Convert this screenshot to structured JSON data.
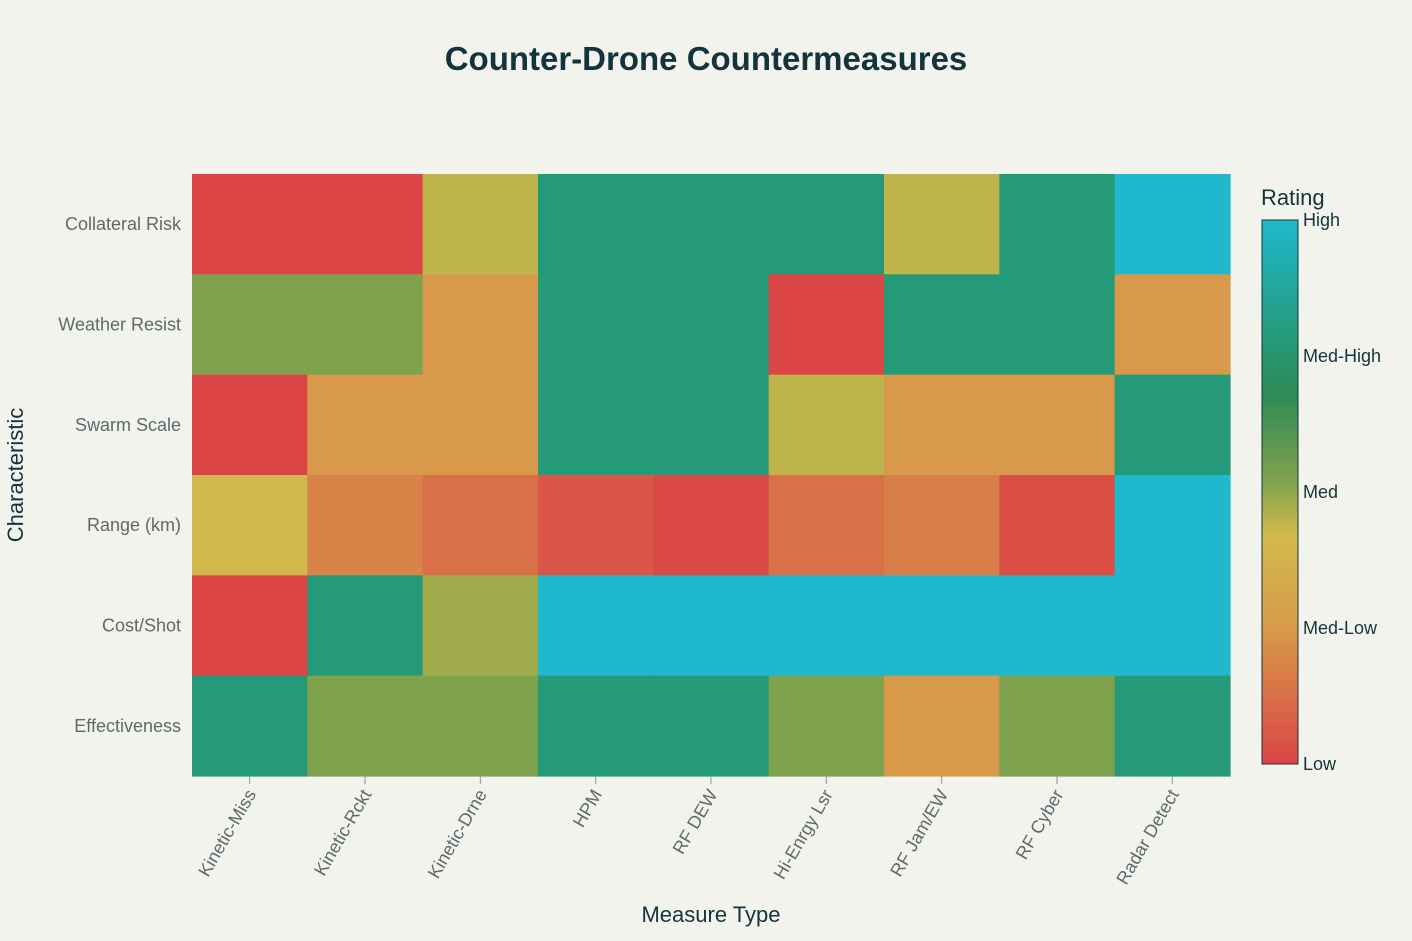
{
  "chart_data": {
    "type": "heatmap",
    "title": "Counter-Drone Countermeasures",
    "xlabel": "Measure Type",
    "ylabel": "Characteristic",
    "x_categories": [
      "Kinetic-Miss",
      "Kinetic-Rckt",
      "Kinetic-Drne",
      "HPM",
      "RF DEW",
      "Hi-Enrgy Lsr",
      "RF Jam/EW",
      "RF Cyber",
      "Radar Detect"
    ],
    "y_categories": [
      "Collateral Risk",
      "Weather Resist",
      "Swarm Scale",
      "Range (km)",
      "Cost/Shot",
      "Effectiveness"
    ],
    "values": [
      [
        0,
        0,
        1.8,
        3,
        3,
        3,
        1.8,
        3,
        4
      ],
      [
        2.2,
        2.2,
        1,
        3,
        3,
        0,
        3,
        3,
        1
      ],
      [
        0,
        1,
        1,
        3,
        3,
        1.8,
        1,
        1,
        3
      ],
      [
        1.7,
        0.6,
        0.25,
        0.1,
        0.03,
        0.25,
        0.5,
        0.05,
        4
      ],
      [
        0,
        3,
        2,
        4,
        4,
        4,
        4,
        4,
        4
      ],
      [
        3,
        2.2,
        2.2,
        3,
        3,
        2.2,
        1,
        2.2,
        3
      ]
    ],
    "zmin": 0,
    "zmax": 4,
    "colorbar": {
      "title": "Rating",
      "tick_labels": [
        "Low",
        "Med-Low",
        "Med",
        "Med-High",
        "High"
      ],
      "tick_values": [
        0,
        1,
        2,
        3,
        4
      ]
    },
    "colorscale": [
      [
        0,
        "#DB4545"
      ],
      [
        0.25,
        "#D2BA4C"
      ],
      [
        0.5,
        "#7FA24D"
      ],
      [
        0.75,
        "#2E8B57"
      ],
      [
        1,
        "#1FB8CD"
      ]
    ]
  }
}
